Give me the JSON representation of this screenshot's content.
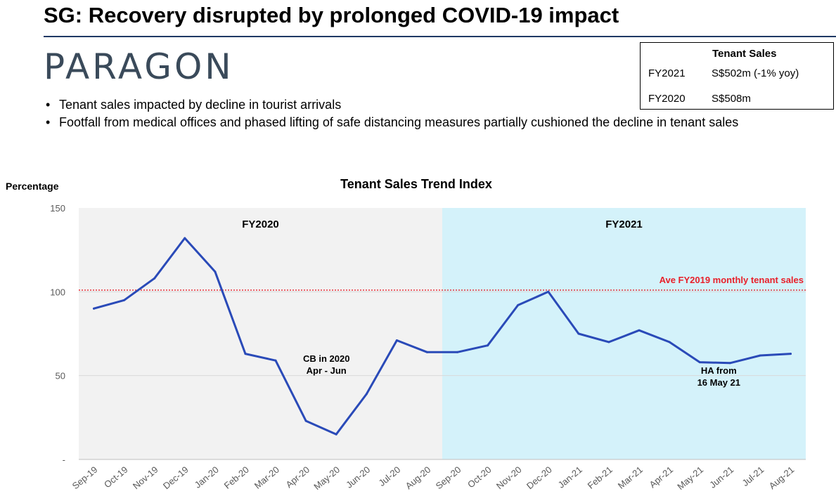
{
  "slide": {
    "title": "SG: Recovery disrupted by prolonged COVID-19 impact",
    "logo_text": "PARAGON",
    "bullets": [
      "Tenant sales impacted by decline in tourist arrivals",
      "Footfall from medical offices and phased lifting of safe distancing measures partially cushioned the decline in tenant sales"
    ]
  },
  "tenant_sales_table": {
    "header": "Tenant Sales",
    "rows": [
      {
        "year": "FY2021",
        "value": "S$502m (-1% yoy)"
      },
      {
        "year": "FY2020",
        "value": "S$508m"
      }
    ]
  },
  "chart_data": {
    "type": "line",
    "title": "Tenant Sales Trend Index",
    "ylabel": "Percentage",
    "xlabel": "",
    "ylim": [
      0,
      150
    ],
    "yticks": [
      {
        "value": 0,
        "label": "-"
      },
      {
        "value": 50,
        "label": "50"
      },
      {
        "value": 100,
        "label": "100"
      },
      {
        "value": 150,
        "label": "150"
      }
    ],
    "categories": [
      "Sep-19",
      "Oct-19",
      "Nov-19",
      "Dec-19",
      "Jan-20",
      "Feb-20",
      "Mar-20",
      "Apr-20",
      "May-20",
      "Jun-20",
      "Jul-20",
      "Aug-20",
      "Sep-20",
      "Oct-20",
      "Nov-20",
      "Dec-20",
      "Jan-21",
      "Feb-21",
      "Mar-21",
      "Apr-21",
      "May-21",
      "Jun-21",
      "Jul-21",
      "Aug-21"
    ],
    "series": [
      {
        "name": "Tenant Sales Trend Index",
        "color": "#2a4ab8",
        "values": [
          90,
          95,
          108,
          132,
          112,
          63,
          59,
          23,
          15,
          39,
          71,
          64,
          64,
          68,
          92,
          100,
          75,
          70,
          77,
          70,
          58,
          57.5,
          62,
          63
        ]
      }
    ],
    "reference_line": {
      "value": 101,
      "label": "Ave FY2019 monthly tenant sales",
      "color": "#e8202a"
    },
    "periods": [
      {
        "label": "FY2020",
        "start": "Sep-19",
        "end": "Aug-20",
        "color": "#f2f2f2"
      },
      {
        "label": "FY2021",
        "start": "Sep-20",
        "end": "Aug-21",
        "color": "#d4f2fa"
      }
    ],
    "annotations": [
      {
        "line1": "CB in 2020",
        "line2": "Apr - Jun",
        "near": "May-20"
      },
      {
        "line1": "HA from",
        "line2": "16 May 21",
        "near": "Jun-21"
      }
    ],
    "grid": true
  }
}
